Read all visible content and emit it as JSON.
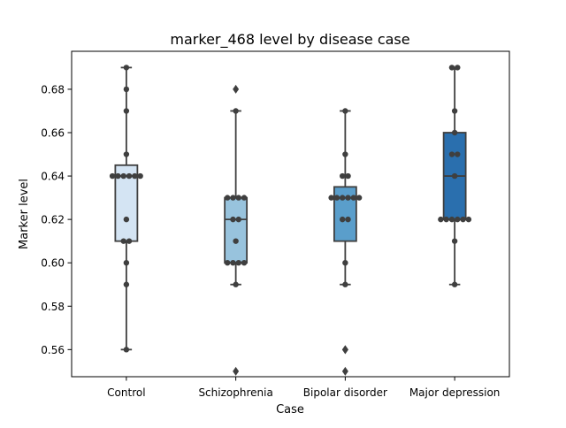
{
  "chart_data": {
    "type": "box",
    "title": "marker_468 level by disease case",
    "xlabel": "Case",
    "ylabel": "Marker level",
    "ylim": [
      0.5475,
      0.6975
    ],
    "yticks": [
      0.56,
      0.58,
      0.6,
      0.62,
      0.64,
      0.66,
      0.68
    ],
    "ytick_labels": [
      "0.56",
      "0.58",
      "0.60",
      "0.62",
      "0.64",
      "0.66",
      "0.68"
    ],
    "grid": false,
    "categories": [
      "Control",
      "Schizophrenia",
      "Bipolar disorder",
      "Major depression"
    ],
    "colors": [
      "#d4e4f3",
      "#98c3dd",
      "#5a9ecb",
      "#2a6fae"
    ],
    "series": [
      {
        "q1": 0.61,
        "median": 0.64,
        "q3": 0.645,
        "whisker_low": 0.56,
        "whisker_high": 0.69,
        "outliers": [],
        "points": [
          0.69,
          0.68,
          0.67,
          0.65,
          0.64,
          0.64,
          0.64,
          0.64,
          0.64,
          0.64,
          0.62,
          0.61,
          0.61,
          0.6,
          0.59,
          0.56
        ]
      },
      {
        "q1": 0.6,
        "median": 0.62,
        "q3": 0.63,
        "whisker_low": 0.59,
        "whisker_high": 0.67,
        "outliers": [
          0.68,
          0.55
        ],
        "points": [
          0.67,
          0.63,
          0.63,
          0.63,
          0.63,
          0.62,
          0.62,
          0.61,
          0.6,
          0.6,
          0.6,
          0.6,
          0.59
        ]
      },
      {
        "q1": 0.61,
        "median": 0.63,
        "q3": 0.635,
        "whisker_low": 0.59,
        "whisker_high": 0.67,
        "outliers": [
          0.56,
          0.56,
          0.55
        ],
        "points": [
          0.67,
          0.65,
          0.64,
          0.64,
          0.63,
          0.63,
          0.63,
          0.63,
          0.63,
          0.63,
          0.62,
          0.62,
          0.6,
          0.59
        ]
      },
      {
        "q1": 0.62,
        "median": 0.64,
        "q3": 0.66,
        "whisker_low": 0.59,
        "whisker_high": 0.69,
        "outliers": [],
        "points": [
          0.69,
          0.69,
          0.67,
          0.66,
          0.65,
          0.65,
          0.64,
          0.62,
          0.62,
          0.62,
          0.62,
          0.62,
          0.62,
          0.61,
          0.59
        ]
      }
    ]
  }
}
